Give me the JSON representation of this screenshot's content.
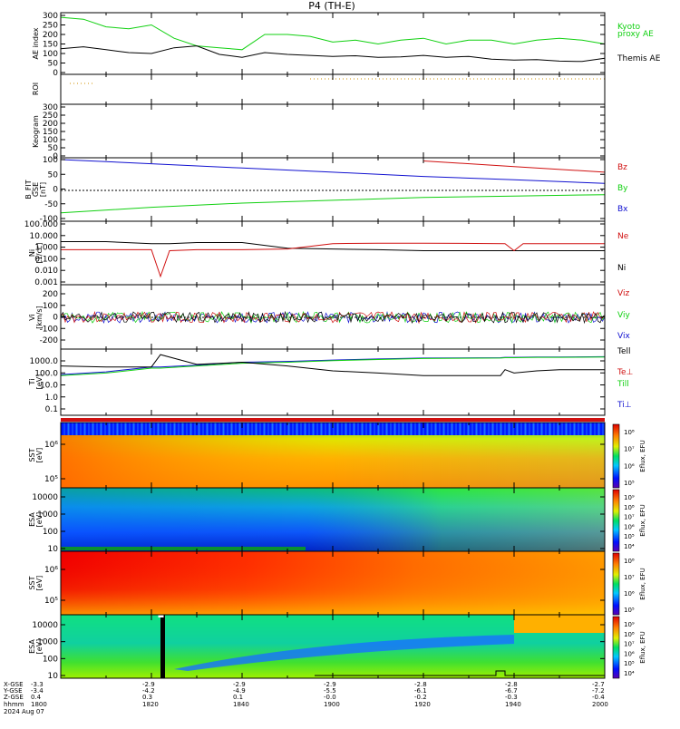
{
  "title": "P4  (TH-E)",
  "colors": {
    "red": "#d01010",
    "green": "#10d010",
    "blue": "#1010d0",
    "black": "#000000",
    "orange": "#d09000"
  },
  "panels": {
    "ae": {
      "ylabel": "AE index",
      "ticks": [
        "300",
        "250",
        "200",
        "150",
        "100",
        "50",
        "0"
      ],
      "legend": [
        {
          "text": "Kyoto",
          "color": "#10d010"
        },
        {
          "text": "proxy AE",
          "color": "#10d010"
        },
        {
          "text": "Themis AE",
          "color": "#000000"
        }
      ]
    },
    "roi": {
      "ylabel": "ROI"
    },
    "keogram": {
      "ylabel": "Keogram",
      "ticks": [
        "300",
        "250",
        "200",
        "150",
        "100",
        "50",
        "0"
      ]
    },
    "bfield": {
      "ylabel": [
        "B_FIT",
        "GSE",
        "[nT]"
      ],
      "ticks": [
        "100",
        "50",
        "0",
        "-50",
        "-100"
      ],
      "legend": [
        {
          "text": "Bz",
          "color": "#d01010"
        },
        {
          "text": "By",
          "color": "#10d010"
        },
        {
          "text": "Bx",
          "color": "#1010d0"
        }
      ]
    },
    "density": {
      "ylabel": [
        "Ni",
        "[1/cc]"
      ],
      "ticks": [
        "100.000",
        "10.000",
        "1.000",
        "0.100",
        "0.010",
        "0.001"
      ],
      "legend": [
        {
          "text": "Ne",
          "color": "#d01010"
        },
        {
          "text": "Ni",
          "color": "#000000"
        }
      ]
    },
    "velocity": {
      "ylabel": [
        "Vi",
        "[km/s]"
      ],
      "ticks": [
        "200",
        "100",
        "0",
        "-100",
        "-200"
      ],
      "legend": [
        {
          "text": "Viz",
          "color": "#d01010"
        },
        {
          "text": "Viy",
          "color": "#10d010"
        },
        {
          "text": "Vix",
          "color": "#1010d0"
        }
      ]
    },
    "temperature": {
      "ylabel": [
        "Ti",
        "[eV]"
      ],
      "ticks": [
        "1000.0",
        "100.0",
        "10.0",
        "1.0",
        "0.1"
      ],
      "legend": [
        {
          "text": "Tell",
          "color": "#000000"
        },
        {
          "text": "Te⊥",
          "color": "#d01010"
        },
        {
          "text": "Till",
          "color": "#10d010"
        },
        {
          "text": "Ti⊥",
          "color": "#1010d0"
        }
      ]
    },
    "sst_i": {
      "ylabel": [
        "SST",
        "[eV]"
      ],
      "ticks": [
        "10⁶",
        "10⁵"
      ]
    },
    "esa_i": {
      "ylabel": [
        "ESA",
        "[eV]"
      ],
      "ticks": [
        "10000",
        "1000",
        "100",
        "10"
      ]
    },
    "sst_e": {
      "ylabel": [
        "SST",
        "[eV]"
      ],
      "ticks": [
        "10⁶",
        "10⁵"
      ]
    },
    "esa_e": {
      "ylabel": [
        "ESA",
        "[eV]"
      ],
      "ticks": [
        "10000",
        "1000",
        "100",
        "10"
      ]
    }
  },
  "colorbar": {
    "label": "Eflux, EFU",
    "ticks_a": [
      "10⁸",
      "10⁷",
      "10⁶",
      "10⁵"
    ],
    "ticks_b": [
      "10⁹",
      "10⁸",
      "10⁷",
      "10⁶",
      "10⁵",
      "10⁴"
    ]
  },
  "footer": {
    "row_labels": [
      "X-GSE",
      "Y-GSE",
      "Z-GSE",
      "hhmm",
      "2024 Aug 07"
    ],
    "columns": [
      {
        "x": "-3.3",
        "y": "-3.4",
        "z": "0.4",
        "t": "1800"
      },
      {
        "x": "-2.9",
        "y": "-4.2",
        "z": "0.3",
        "t": "1820"
      },
      {
        "x": "-2.9",
        "y": "-4.9",
        "z": "0.1",
        "t": "1840"
      },
      {
        "x": "-2.9",
        "y": "-5.5",
        "z": "-0.0",
        "t": "1900"
      },
      {
        "x": "-2.8",
        "y": "-6.1",
        "z": "-0.2",
        "t": "1920"
      },
      {
        "x": "-2.8",
        "y": "-6.7",
        "z": "-0.3",
        "t": "1940"
      },
      {
        "x": "-2.7",
        "y": "-7.2",
        "z": "-0.4",
        "t": "2000"
      }
    ]
  },
  "chart_data": {
    "type": "line",
    "title": "P4  (TH-E)",
    "time_range": [
      "18:00",
      "20:00"
    ],
    "ae_index": {
      "time_min": [
        0,
        5,
        10,
        15,
        20,
        25,
        30,
        35,
        40,
        45,
        50,
        55,
        60,
        65,
        70,
        75,
        80,
        85,
        90,
        95,
        100,
        105,
        110,
        115,
        120
      ],
      "series": [
        {
          "name": "Kyoto",
          "values": [
            290,
            280,
            240,
            230,
            250,
            180,
            140,
            130,
            120,
            200,
            200,
            190,
            160,
            170,
            150,
            170,
            180,
            150,
            170,
            170,
            150,
            170,
            180,
            170,
            150
          ]
        },
        {
          "name": "Themis AE",
          "values": [
            125,
            135,
            120,
            105,
            100,
            130,
            140,
            95,
            80,
            105,
            95,
            90,
            85,
            88,
            80,
            82,
            90,
            80,
            85,
            70,
            65,
            68,
            60,
            58,
            75
          ]
        }
      ],
      "ylim": [
        0,
        300
      ]
    },
    "b_field_gse_nT": {
      "time_min": [
        0,
        20,
        40,
        60,
        80,
        100,
        120
      ],
      "series": [
        {
          "name": "Bz",
          "values": [
            null,
            null,
            null,
            null,
            105,
            85,
            65
          ]
        },
        {
          "name": "By",
          "values": [
            -80,
            -60,
            -45,
            -35,
            -25,
            -20,
            -15
          ]
        },
        {
          "name": "Bx",
          "values": [
            110,
            95,
            80,
            65,
            50,
            38,
            25
          ]
        }
      ],
      "ylim": [
        -100,
        110
      ]
    },
    "density_cc": {
      "time_min": [
        0,
        10,
        20,
        22,
        24,
        30,
        40,
        50,
        60,
        70,
        80,
        98,
        100,
        102,
        110,
        120
      ],
      "series": [
        {
          "name": "Ne",
          "values": [
            0.6,
            0.6,
            0.6,
            0.003,
            0.5,
            0.6,
            0.6,
            0.7,
            2,
            2.2,
            2.2,
            2,
            0.5,
            2,
            2,
            2
          ]
        },
        {
          "name": "Ni",
          "values": [
            3,
            3,
            2,
            2,
            2,
            2.5,
            2.5,
            0.8,
            0.7,
            0.6,
            0.5,
            0.5,
            0.5,
            0.5,
            0.5,
            0.5
          ]
        }
      ],
      "ylim": [
        0.001,
        100
      ],
      "scale": "log"
    },
    "velocity_kms": {
      "series": [
        {
          "name": "Viz",
          "values": [
            0
          ]
        },
        {
          "name": "Viy",
          "values": [
            0
          ]
        },
        {
          "name": "Vix",
          "values": [
            0
          ]
        }
      ],
      "ylim": [
        -250,
        250
      ]
    },
    "temperature_eV": {
      "time_min": [
        0,
        10,
        20,
        22,
        30,
        40,
        50,
        60,
        70,
        80,
        97,
        98,
        100,
        105,
        110,
        120
      ],
      "series": [
        {
          "name": "Tell",
          "values": [
            300,
            250,
            250,
            2500,
            400,
            600,
            300,
            120,
            80,
            50,
            50,
            150,
            80,
            120,
            150,
            150
          ]
        },
        {
          "name": "Till",
          "values": [
            50,
            80,
            200,
            200,
            300,
            500,
            600,
            800,
            1000,
            1200,
            1300,
            1400,
            1400,
            1500,
            1500,
            1600
          ]
        },
        {
          "name": "Ti⊥",
          "values": [
            60,
            100,
            250,
            250,
            350,
            600,
            700,
            900,
            1100,
            1300,
            1400,
            1500,
            1500,
            1600,
            1600,
            1700
          ]
        }
      ],
      "ylim": [
        0.1,
        3000
      ],
      "scale": "log"
    }
  }
}
